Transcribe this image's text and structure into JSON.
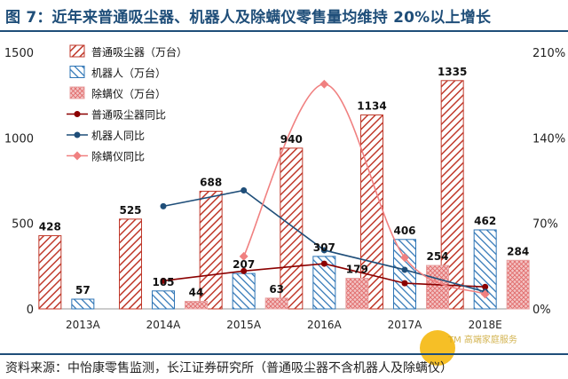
{
  "title": "图 7：近年来普通吸尘器、机器人及除螨仪零售量均维持 20%以上增长",
  "source": "资料来源：中怡康零售监测，长江证券研究所（普通吸尘器不含机器人及除螨仪）",
  "watermark": "TM 高端家庭服务",
  "colors": {
    "vacuum": "#c0392b",
    "robot": "#2e75b6",
    "mite": "#e8a0a0",
    "vacuum_line": "#8b0000",
    "robot_line": "#1f4e79",
    "mite_line": "#f08080",
    "axis_text": "#222222"
  },
  "chart_data": {
    "type": "bar",
    "categories": [
      "2013A",
      "2014A",
      "2015A",
      "2016A",
      "2017A",
      "2018E"
    ],
    "left_axis": {
      "min": 0,
      "max": 1500,
      "ticks": [
        "0",
        "500",
        "1000",
        "1500"
      ]
    },
    "right_axis": {
      "min": 0,
      "max": 210,
      "ticks": [
        "0%",
        "70%",
        "140%",
        "210%"
      ]
    },
    "series": [
      {
        "name": "普通吸尘器（万台）",
        "kind": "bar",
        "values": [
          428,
          525,
          688,
          940,
          1134,
          1335
        ],
        "labels": [
          "428",
          "525",
          "688",
          "940",
          "1134",
          "1335"
        ]
      },
      {
        "name": "机器人（万台）",
        "kind": "bar",
        "values": [
          57,
          105,
          207,
          307,
          406,
          462
        ],
        "labels": [
          "57",
          "105",
          "207",
          "307",
          "406",
          "462"
        ]
      },
      {
        "name": "除螨仪（万台）",
        "kind": "bar",
        "values": [
          null,
          44,
          63,
          179,
          254,
          284
        ],
        "labels": [
          "",
          "44",
          "63",
          "179",
          "254",
          "284"
        ]
      },
      {
        "name": "普通吸尘器同比",
        "kind": "line",
        "axis": "right",
        "values": [
          null,
          23,
          31,
          37,
          21,
          18
        ]
      },
      {
        "name": "机器人同比",
        "kind": "line",
        "axis": "right",
        "values": [
          null,
          84,
          97,
          48,
          32,
          14
        ]
      },
      {
        "name": "除螨仪同比",
        "kind": "line",
        "axis": "right",
        "values": [
          null,
          null,
          43,
          184,
          42,
          12
        ]
      }
    ]
  }
}
